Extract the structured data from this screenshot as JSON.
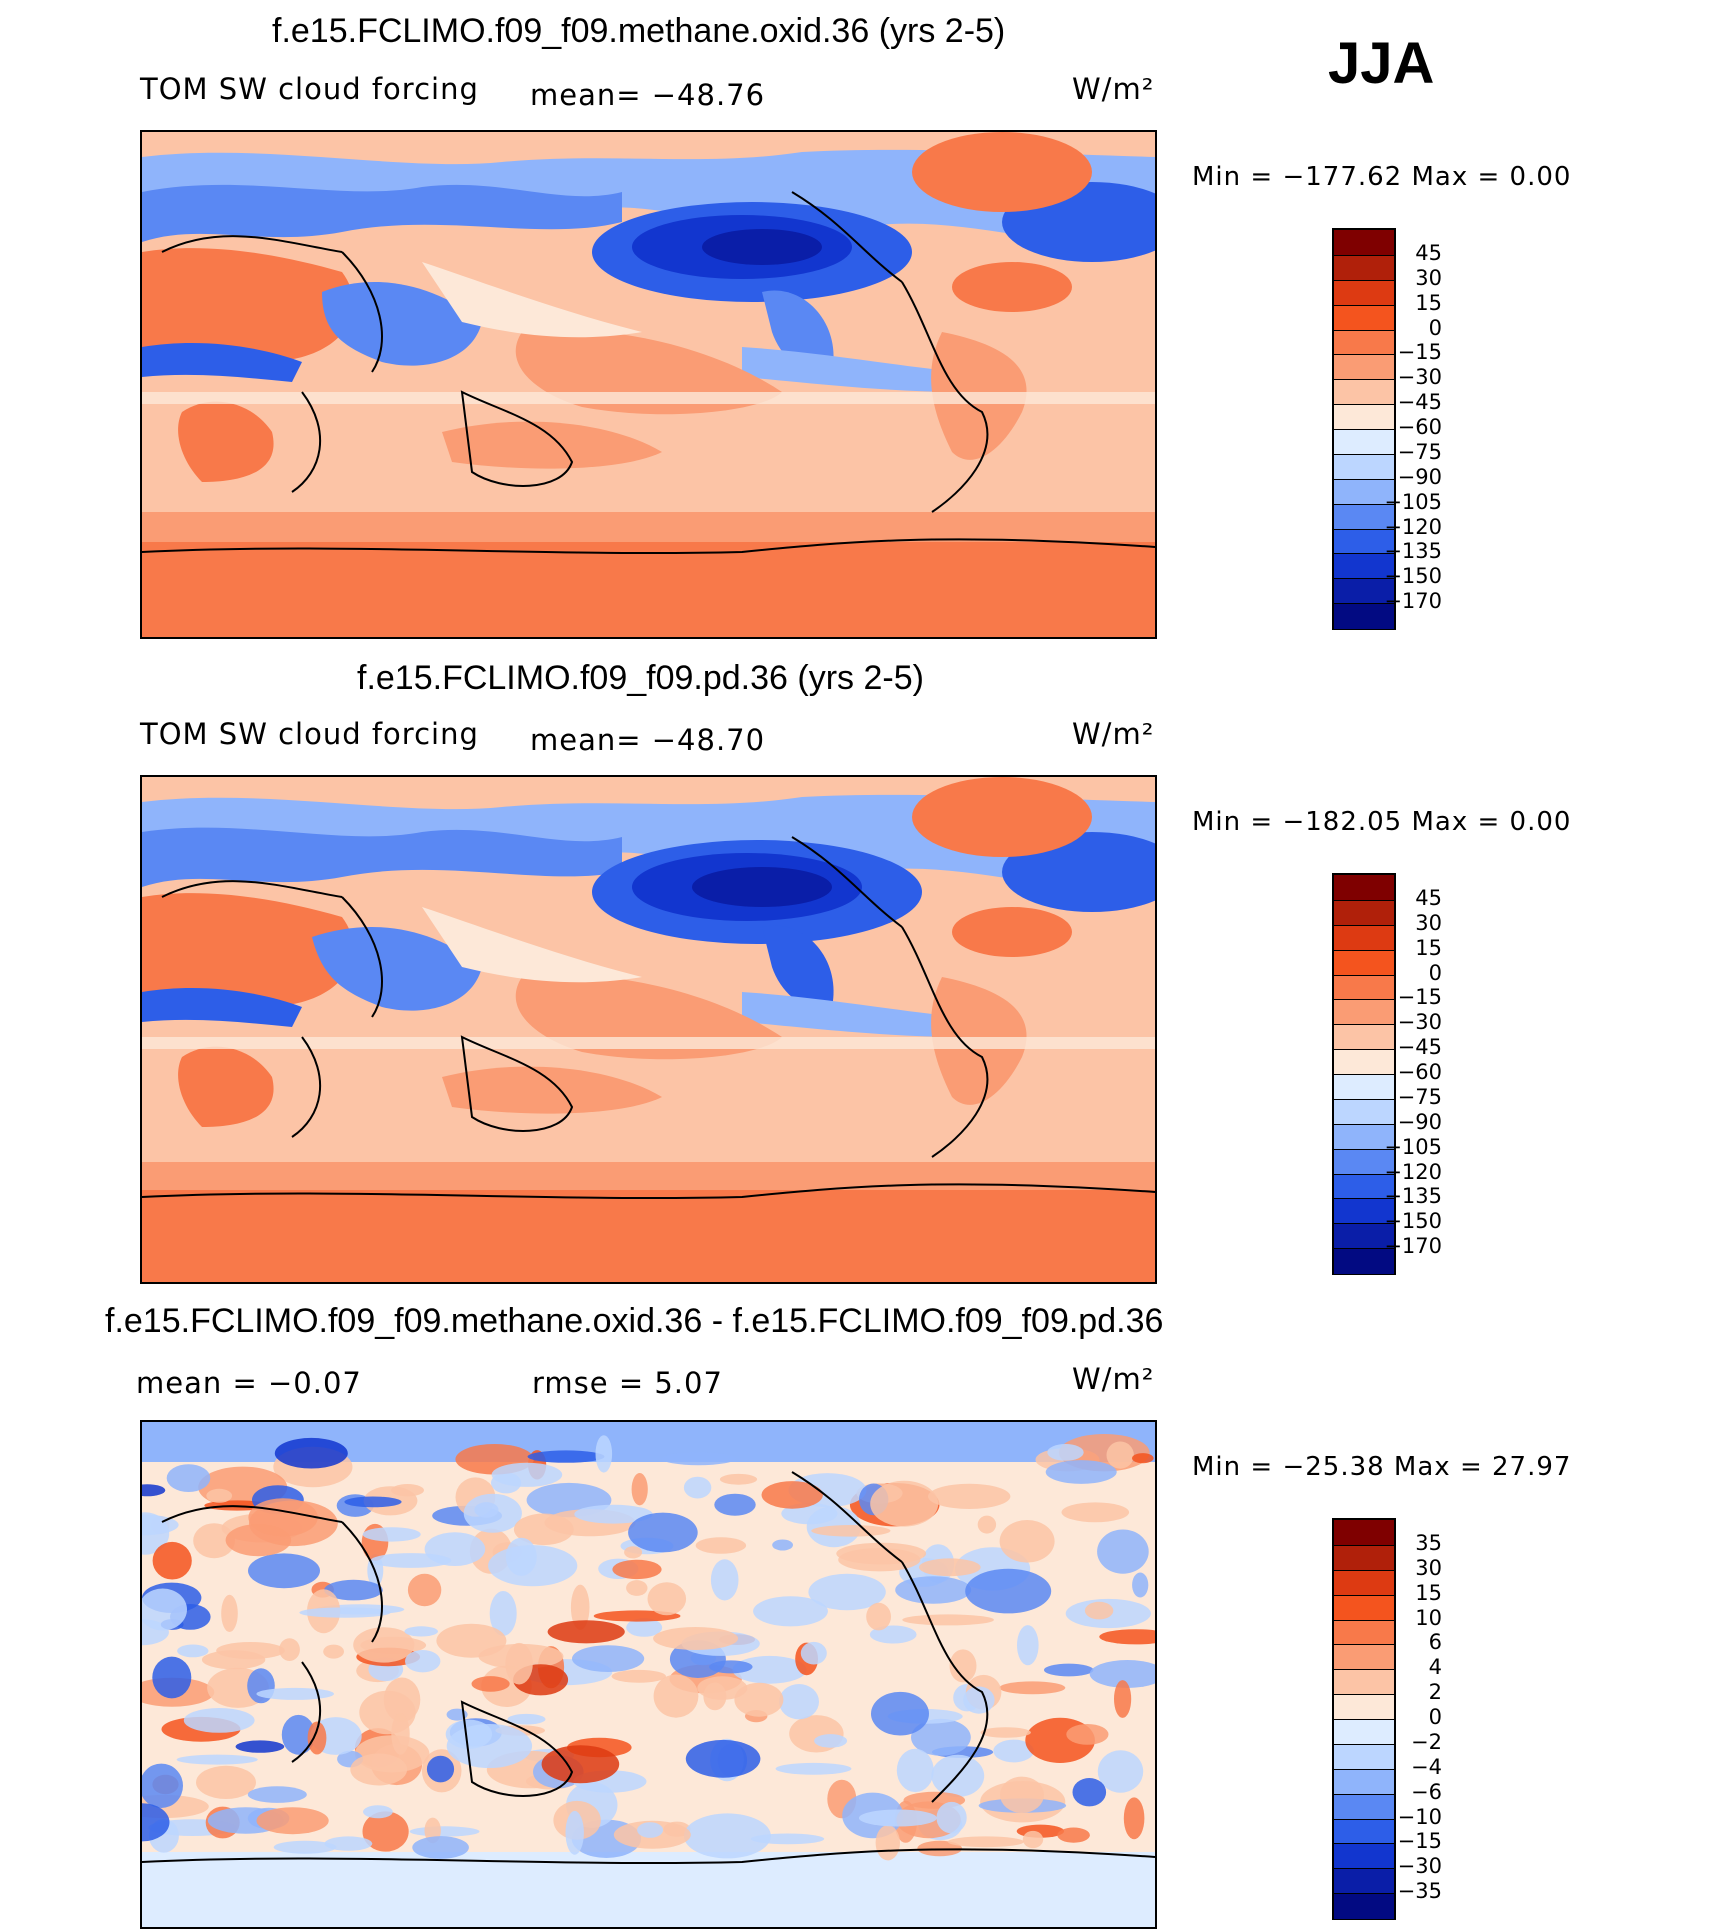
{
  "season": "JJA",
  "chart_data": [
    {
      "type": "heatmap",
      "title": "f.e15.FCLIMO.f09_f09.methane.oxid.36 (yrs 2-5)",
      "variable": "TOM SW cloud forcing",
      "mean_text": "mean= −48.76",
      "units": "W/m²",
      "min": -177.62,
      "max": 0.0,
      "minmax_text": "Min  =  −177.62  Max  =      0.00",
      "colorbar_labels": [
        "45",
        "30",
        "15",
        "0",
        "−15",
        "−30",
        "−45",
        "−60",
        "−75",
        "−90",
        "−105",
        "−120",
        "−135",
        "−150",
        "−170"
      ]
    },
    {
      "type": "heatmap",
      "title": "f.e15.FCLIMO.f09_f09.pd.36 (yrs 2-5)",
      "variable": "TOM SW cloud forcing",
      "mean_text": "mean= −48.70",
      "units": "W/m²",
      "min": -182.05,
      "max": 0.0,
      "minmax_text": "Min  =  −182.05  Max  =      0.00",
      "colorbar_labels": [
        "45",
        "30",
        "15",
        "0",
        "−15",
        "−30",
        "−45",
        "−60",
        "−75",
        "−90",
        "−105",
        "−120",
        "−135",
        "−150",
        "−170"
      ]
    },
    {
      "type": "heatmap",
      "title": "f.e15.FCLIMO.f09_f09.methane.oxid.36 - f.e15.FCLIMO.f09_f09.pd.36",
      "mean_text": "mean  =    −0.07",
      "rmse_text": "rmse  =     5.07",
      "units": "W/m²",
      "min": -25.38,
      "max": 27.97,
      "minmax_text": "Min  =  −25.38  Max  =   27.97",
      "colorbar_labels": [
        "35",
        "30",
        "15",
        "10",
        "6",
        "4",
        "2",
        "0",
        "−2",
        "−4",
        "−6",
        "−10",
        "−15",
        "−30",
        "−35"
      ]
    }
  ],
  "palette": [
    "#7f0000",
    "#b0200a",
    "#dd3a12",
    "#f4541e",
    "#f8794a",
    "#fa9c74",
    "#fcc4a6",
    "#fde8d8",
    "#ddecff",
    "#bcd6ff",
    "#8fb4fb",
    "#5a88f3",
    "#2d5ee8",
    "#1236cf",
    "#0a1ea8",
    "#020a82"
  ]
}
